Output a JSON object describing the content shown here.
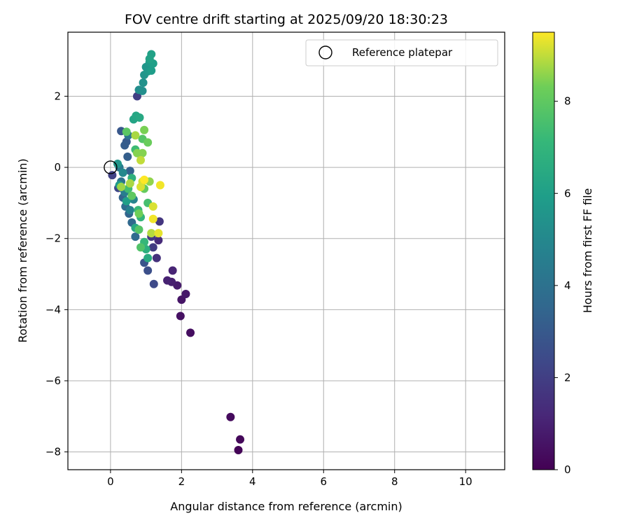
{
  "chart_data": {
    "type": "scatter",
    "title": "FOV centre drift starting at 2025/09/20 18:30:23",
    "xlabel": "Angular distance from reference (arcmin)",
    "ylabel": "Rotation from reference (arcmin)",
    "xlim": [
      -1.2,
      11.1
    ],
    "ylim": [
      -8.5,
      3.8
    ],
    "xticks": [
      0,
      2,
      4,
      6,
      8,
      10
    ],
    "yticks": [
      -8,
      -6,
      -4,
      -2,
      0,
      2
    ],
    "grid": true,
    "legend": {
      "position": "top-right",
      "entries": [
        "Reference platepar"
      ]
    },
    "reference_point": {
      "x": 0,
      "y": 0,
      "label": "Reference platepar"
    },
    "colorbar": {
      "label": "Hours from first FF file",
      "min": 0,
      "max": 9.5,
      "ticks": [
        0,
        2,
        4,
        6,
        8
      ],
      "colormap": "viridis"
    },
    "points": [
      {
        "x": 3.6,
        "y": -7.95,
        "h": 0.1
      },
      {
        "x": 3.65,
        "y": -7.65,
        "h": 0.2
      },
      {
        "x": 3.38,
        "y": -7.02,
        "h": 0.3
      },
      {
        "x": 2.25,
        "y": -4.65,
        "h": 0.4
      },
      {
        "x": 1.97,
        "y": -4.18,
        "h": 0.5
      },
      {
        "x": 2.0,
        "y": -3.72,
        "h": 0.6
      },
      {
        "x": 2.12,
        "y": -3.56,
        "h": 0.7
      },
      {
        "x": 1.88,
        "y": -3.32,
        "h": 0.8
      },
      {
        "x": 1.72,
        "y": -3.22,
        "h": 0.9
      },
      {
        "x": 1.6,
        "y": -3.18,
        "h": 1.0
      },
      {
        "x": 1.75,
        "y": -2.9,
        "h": 1.1
      },
      {
        "x": 1.35,
        "y": -2.05,
        "h": 1.3
      },
      {
        "x": 1.3,
        "y": -2.55,
        "h": 1.5
      },
      {
        "x": 1.38,
        "y": -1.52,
        "h": 1.7
      },
      {
        "x": 1.15,
        "y": -1.95,
        "h": 1.8
      },
      {
        "x": 1.2,
        "y": -2.25,
        "h": 1.9
      },
      {
        "x": 0.75,
        "y": 2.0,
        "h": 2.0
      },
      {
        "x": 0.05,
        "y": -0.22,
        "h": 2.1
      },
      {
        "x": 0.22,
        "y": -0.58,
        "h": 2.3
      },
      {
        "x": 1.22,
        "y": -3.28,
        "h": 2.4
      },
      {
        "x": 1.05,
        "y": -2.9,
        "h": 2.6
      },
      {
        "x": 0.95,
        "y": -2.68,
        "h": 2.8
      },
      {
        "x": 0.3,
        "y": 1.02,
        "h": 2.9
      },
      {
        "x": 0.45,
        "y": 0.72,
        "h": 3.0
      },
      {
        "x": 0.4,
        "y": 0.62,
        "h": 3.1
      },
      {
        "x": 0.48,
        "y": 0.3,
        "h": 3.2
      },
      {
        "x": 0.55,
        "y": -0.1,
        "h": 3.3
      },
      {
        "x": 0.35,
        "y": -0.85,
        "h": 3.4
      },
      {
        "x": 0.52,
        "y": -1.3,
        "h": 3.5
      },
      {
        "x": 0.6,
        "y": -1.55,
        "h": 3.6
      },
      {
        "x": 0.7,
        "y": -1.95,
        "h": 3.7
      },
      {
        "x": 0.42,
        "y": -1.1,
        "h": 3.8
      },
      {
        "x": 0.3,
        "y": -0.4,
        "h": 4.0
      },
      {
        "x": 0.5,
        "y": 0.9,
        "h": 4.2
      },
      {
        "x": 0.25,
        "y": 0.0,
        "h": 4.4
      },
      {
        "x": 0.4,
        "y": -0.7,
        "h": 4.5
      },
      {
        "x": 0.55,
        "y": -1.2,
        "h": 4.7
      },
      {
        "x": 0.65,
        "y": -0.9,
        "h": 4.8
      },
      {
        "x": 0.35,
        "y": -0.15,
        "h": 5.0
      },
      {
        "x": 0.8,
        "y": 2.18,
        "h": 5.2
      },
      {
        "x": 0.9,
        "y": 2.15,
        "h": 5.3
      },
      {
        "x": 0.92,
        "y": 2.38,
        "h": 5.4
      },
      {
        "x": 0.95,
        "y": 2.6,
        "h": 5.5
      },
      {
        "x": 1.0,
        "y": 2.82,
        "h": 5.6
      },
      {
        "x": 1.05,
        "y": 2.7,
        "h": 5.7
      },
      {
        "x": 1.1,
        "y": 2.95,
        "h": 5.8
      },
      {
        "x": 1.15,
        "y": 2.72,
        "h": 5.9
      },
      {
        "x": 1.2,
        "y": 2.92,
        "h": 6.0
      },
      {
        "x": 1.15,
        "y": 3.18,
        "h": 6.1
      },
      {
        "x": 1.1,
        "y": 3.05,
        "h": 6.15
      },
      {
        "x": 0.2,
        "y": 0.1,
        "h": 5.6
      },
      {
        "x": 0.25,
        "y": -0.5,
        "h": 5.8
      },
      {
        "x": 0.45,
        "y": -0.95,
        "h": 6.0
      },
      {
        "x": 0.65,
        "y": 1.35,
        "h": 6.2
      },
      {
        "x": 0.72,
        "y": 1.45,
        "h": 6.3
      },
      {
        "x": 0.82,
        "y": 1.4,
        "h": 6.4
      },
      {
        "x": 0.7,
        "y": -1.7,
        "h": 6.4
      },
      {
        "x": 1.05,
        "y": -2.55,
        "h": 6.5
      },
      {
        "x": 1.0,
        "y": -2.3,
        "h": 6.7
      },
      {
        "x": 0.6,
        "y": -0.3,
        "h": 6.8
      },
      {
        "x": 0.85,
        "y": -1.4,
        "h": 7.0
      },
      {
        "x": 0.95,
        "y": -2.1,
        "h": 7.1
      },
      {
        "x": 0.78,
        "y": -1.2,
        "h": 7.2
      },
      {
        "x": 0.7,
        "y": 0.5,
        "h": 7.3
      },
      {
        "x": 0.5,
        "y": -0.6,
        "h": 7.4
      },
      {
        "x": 1.05,
        "y": -1.0,
        "h": 7.5
      },
      {
        "x": 0.85,
        "y": -2.25,
        "h": 7.7
      },
      {
        "x": 0.8,
        "y": -1.75,
        "h": 7.8
      },
      {
        "x": 0.9,
        "y": 0.8,
        "h": 7.8
      },
      {
        "x": 0.45,
        "y": 1.0,
        "h": 7.9
      },
      {
        "x": 0.6,
        "y": -0.8,
        "h": 8.0
      },
      {
        "x": 0.95,
        "y": -0.6,
        "h": 8.1
      },
      {
        "x": 1.05,
        "y": 0.7,
        "h": 8.2
      },
      {
        "x": 0.8,
        "y": -1.3,
        "h": 8.3
      },
      {
        "x": 0.95,
        "y": 1.05,
        "h": 8.4
      },
      {
        "x": 0.75,
        "y": 0.4,
        "h": 8.5
      },
      {
        "x": 0.9,
        "y": 0.4,
        "h": 8.5
      },
      {
        "x": 1.1,
        "y": -0.4,
        "h": 8.6
      },
      {
        "x": 0.3,
        "y": -0.55,
        "h": 8.7
      },
      {
        "x": 0.55,
        "y": -0.45,
        "h": 8.8
      },
      {
        "x": 0.7,
        "y": 0.9,
        "h": 8.8
      },
      {
        "x": 1.15,
        "y": -1.85,
        "h": 8.9
      },
      {
        "x": 0.85,
        "y": 0.2,
        "h": 9.0
      },
      {
        "x": 0.9,
        "y": -0.4,
        "h": 9.1
      },
      {
        "x": 0.85,
        "y": -0.55,
        "h": 9.2
      },
      {
        "x": 1.2,
        "y": -1.1,
        "h": 9.2
      },
      {
        "x": 1.35,
        "y": -1.85,
        "h": 9.3
      },
      {
        "x": 1.4,
        "y": -0.5,
        "h": 9.4
      },
      {
        "x": 1.2,
        "y": -1.45,
        "h": 9.4
      },
      {
        "x": 0.95,
        "y": -0.35,
        "h": 9.5
      }
    ]
  }
}
